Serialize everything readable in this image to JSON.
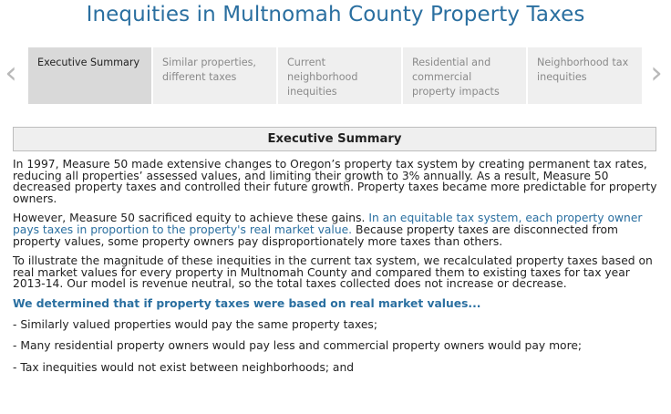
{
  "page": {
    "title": "Inequities in Multnomah County Property Taxes"
  },
  "nav": {
    "prev_arrow": "‹",
    "next_arrow": "›"
  },
  "tabs": [
    {
      "label": "Executive Summary",
      "active": true
    },
    {
      "label": "Similar properties, different taxes",
      "active": false
    },
    {
      "label": "Current neighborhood inequities",
      "active": false
    },
    {
      "label": "Residential and commercial property impacts",
      "active": false
    },
    {
      "label": "Neighborhood tax inequities",
      "active": false
    }
  ],
  "section": {
    "heading": "Executive Summary",
    "para1": "In 1997, Measure 50 made extensive changes to Oregon’s property tax system by creating permanent tax rates, reducing all properties’ assessed values, and limiting their growth to 3% annually. As a result, Measure 50 decreased property taxes and controlled their future growth. Property taxes became more predictable for property owners.",
    "para2_a": "However, Measure 50 sacrificed equity to achieve these gains. ",
    "para2_b": "In an equitable tax system, each property owner pays taxes in proportion to the property's real market value.",
    "para2_c": " Because property taxes are disconnected from property values, some property owners pay disproportionately more taxes than others.",
    "para3": "To illustrate the magnitude of these inequities in the current tax system, we recalculated property taxes based on real market values for every property in Multnomah County and compared them to existing taxes for tax year 2013-14. Our model is revenue neutral, so the total taxes collected does not increase or decrease.",
    "highlight": "We determined that if property taxes were based on real market values...",
    "bullets": [
      "- Similarly valued properties would pay the same property taxes;",
      "- Many residential property owners would pay less and commercial property owners would pay more;",
      "- Tax inequities would not exist between neighborhoods; and"
    ]
  },
  "colors": {
    "accent": "#2a6fa0",
    "tab_active_bg": "#d9d9d9",
    "tab_bg": "#efefef"
  }
}
